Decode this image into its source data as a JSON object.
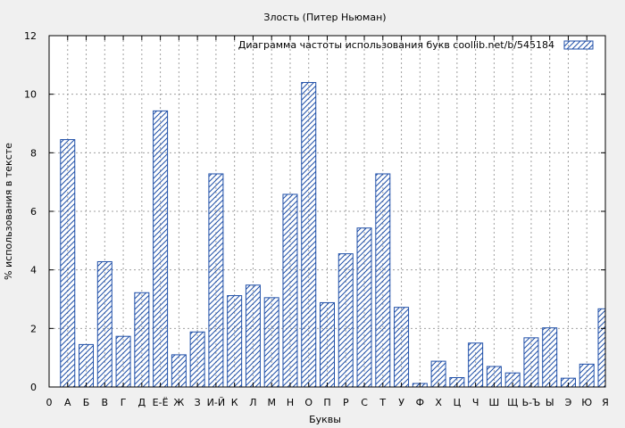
{
  "chart_data": {
    "type": "bar",
    "title": "Злость (Питер Ньюман)",
    "xlabel": "Буквы",
    "ylabel": "% использования в тексте",
    "ylim": [
      0,
      12
    ],
    "yticks": [
      "0",
      "2",
      "4",
      "6",
      "8",
      "10",
      "12"
    ],
    "grid": true,
    "legend_position": "top-right",
    "colors": {
      "bar_stroke": "#1f4fa8",
      "grid": "#a0a0a0",
      "background": "#f0f0f0",
      "plot_bg": "#ffffff"
    },
    "categories": [
      "0",
      "А",
      "Б",
      "В",
      "Г",
      "Д",
      "Е-Ё",
      "Ж",
      "З",
      "И-Й",
      "К",
      "Л",
      "М",
      "Н",
      "О",
      "П",
      "Р",
      "С",
      "Т",
      "У",
      "Ф",
      "Х",
      "Ц",
      "Ч",
      "Ш",
      "Щ",
      "Ь-Ъ",
      "Ы",
      "Э",
      "Ю",
      "Я"
    ],
    "series": [
      {
        "name": "Диаграмма частоты использования букв  coollib.net/b/545184",
        "values": [
          0,
          8.45,
          1.45,
          4.28,
          1.73,
          3.22,
          9.43,
          1.1,
          1.88,
          7.28,
          3.12,
          3.48,
          3.05,
          6.58,
          10.4,
          2.88,
          4.55,
          5.43,
          7.28,
          2.72,
          0.12,
          0.88,
          0.32,
          1.5,
          0.7,
          0.48,
          1.68,
          2.02,
          0.3,
          0.78,
          2.67
        ]
      }
    ]
  }
}
